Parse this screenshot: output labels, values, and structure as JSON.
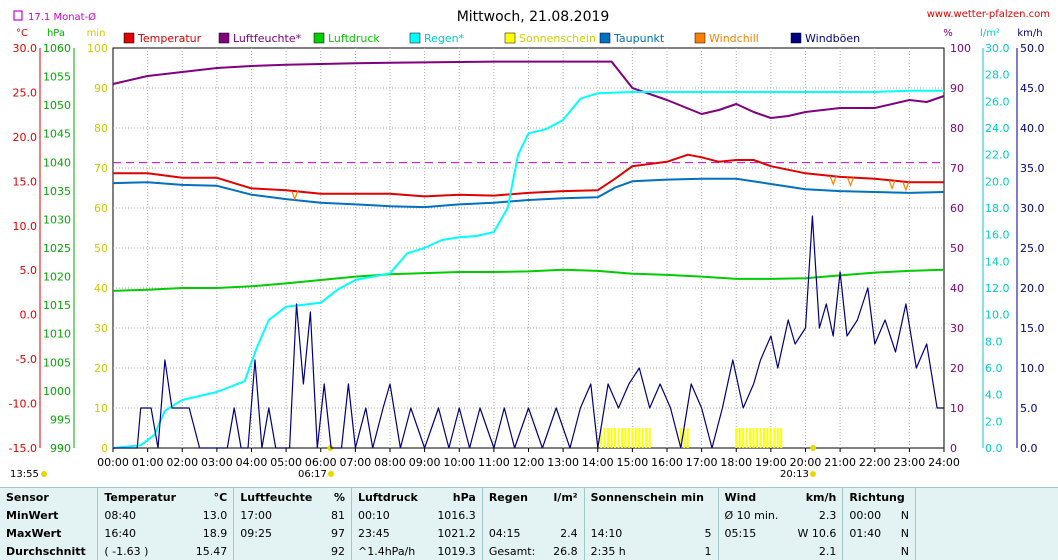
{
  "chart_data": {
    "type": "line",
    "title": "Mittwoch, 21.08.2019",
    "source": "www.wetter-pfalzen.com",
    "monthly_avg_label": "17.1 Monat-Ø",
    "monthly_avg_temp": 17.1,
    "x_ticks": [
      "00:00",
      "01:00",
      "02:00",
      "03:00",
      "04:00",
      "05:00",
      "06:00",
      "07:00",
      "08:00",
      "09:00",
      "10:00",
      "11:00",
      "12:00",
      "13:00",
      "14:00",
      "15:00",
      "16:00",
      "17:00",
      "18:00",
      "19:00",
      "20:00",
      "21:00",
      "22:00",
      "23:00",
      "24:00"
    ],
    "sun_events": {
      "sunrise": "06:17",
      "sunset": "20:13",
      "current_time": "13:55"
    },
    "axes": {
      "temp": {
        "unit": "°C",
        "min": -15,
        "max": 30,
        "ticks": [
          "30.0",
          "25.0",
          "20.0",
          "15.0",
          "10.0",
          "5.0",
          "0.0",
          "-5.0",
          "-10.0",
          "-15.0"
        ]
      },
      "pressure": {
        "unit": "hPa",
        "min": 990,
        "max": 1060,
        "ticks": [
          "1060",
          "1055",
          "1050",
          "1045",
          "1040",
          "1035",
          "1030",
          "1025",
          "1020",
          "1015",
          "1010",
          "1005",
          "1000",
          "995",
          "990"
        ]
      },
      "minutes": {
        "unit": "min",
        "min": 0,
        "max": 100,
        "ticks": [
          "100",
          "90",
          "80",
          "70",
          "60",
          "50",
          "40",
          "30",
          "20",
          "10",
          "0"
        ]
      },
      "humidity": {
        "unit": "%",
        "min": 0,
        "max": 100,
        "ticks": [
          "100",
          "90",
          "80",
          "70",
          "60",
          "50",
          "40",
          "30",
          "20",
          "10",
          "0"
        ]
      },
      "rain": {
        "unit": "l/m²",
        "min": 0,
        "max": 30,
        "ticks": [
          "30.0",
          "28.0",
          "26.0",
          "24.0",
          "22.0",
          "20.0",
          "18.0",
          "16.0",
          "14.0",
          "12.0",
          "10.0",
          "8.0",
          "6.0",
          "4.0",
          "2.0",
          "0.0"
        ]
      },
      "wind": {
        "unit": "km/h",
        "min": 0,
        "max": 50,
        "ticks": [
          "50.0",
          "45.0",
          "40.0",
          "35.0",
          "30.0",
          "25.0",
          "20.0",
          "15.0",
          "10.0",
          "5.0",
          "0.0"
        ]
      }
    },
    "legend": [
      {
        "name": "Temperatur",
        "color": "#e00000"
      },
      {
        "name": "Luftfeuchte*",
        "color": "#800080"
      },
      {
        "name": "Luftdruck",
        "color": "#00cc00"
      },
      {
        "name": "Regen*",
        "color": "#00ffff"
      },
      {
        "name": "Sonnenschein",
        "color": "#ffff00"
      },
      {
        "name": "Taupunkt",
        "color": "#0070c0"
      },
      {
        "name": "Windchill",
        "color": "#ff8000"
      },
      {
        "name": "Windböen",
        "color": "#000080"
      }
    ],
    "series": [
      {
        "key": "temperature",
        "axis": "temp",
        "color": "#e00000",
        "points": [
          [
            0,
            15.9
          ],
          [
            1,
            15.9
          ],
          [
            2,
            15.4
          ],
          [
            3,
            15.4
          ],
          [
            4,
            14.2
          ],
          [
            5,
            14.0
          ],
          [
            6,
            13.6
          ],
          [
            7,
            13.6
          ],
          [
            8,
            13.6
          ],
          [
            9,
            13.3
          ],
          [
            10,
            13.5
          ],
          [
            11,
            13.4
          ],
          [
            12,
            13.7
          ],
          [
            13,
            13.9
          ],
          [
            14,
            14.0
          ],
          [
            14.5,
            15.3
          ],
          [
            15,
            16.7
          ],
          [
            16,
            17.2
          ],
          [
            16.6,
            18.0
          ],
          [
            17,
            17.7
          ],
          [
            17.5,
            17.2
          ],
          [
            18,
            17.4
          ],
          [
            18.5,
            17.4
          ],
          [
            19,
            16.7
          ],
          [
            20,
            15.9
          ],
          [
            21,
            15.5
          ],
          [
            22,
            15.3
          ],
          [
            23,
            14.9
          ],
          [
            24,
            14.9
          ]
        ]
      },
      {
        "key": "dewpoint",
        "axis": "temp",
        "color": "#0070c0",
        "points": [
          [
            0,
            14.8
          ],
          [
            1,
            14.9
          ],
          [
            2,
            14.6
          ],
          [
            3,
            14.5
          ],
          [
            4,
            13.5
          ],
          [
            5,
            13.0
          ],
          [
            6,
            12.6
          ],
          [
            7,
            12.4
          ],
          [
            8,
            12.2
          ],
          [
            9,
            12.1
          ],
          [
            10,
            12.4
          ],
          [
            11,
            12.6
          ],
          [
            12,
            12.9
          ],
          [
            13,
            13.1
          ],
          [
            14,
            13.2
          ],
          [
            14.5,
            14.3
          ],
          [
            15,
            15.0
          ],
          [
            16,
            15.2
          ],
          [
            17,
            15.3
          ],
          [
            18,
            15.3
          ],
          [
            19,
            14.7
          ],
          [
            20,
            14.1
          ],
          [
            21,
            13.9
          ],
          [
            22,
            13.8
          ],
          [
            23,
            13.7
          ],
          [
            24,
            13.8
          ]
        ]
      },
      {
        "key": "humidity",
        "axis": "humidity",
        "color": "#800080",
        "points": [
          [
            0,
            91
          ],
          [
            1,
            93
          ],
          [
            2,
            94
          ],
          [
            3,
            95
          ],
          [
            4,
            95.5
          ],
          [
            5,
            95.8
          ],
          [
            6,
            96
          ],
          [
            7,
            96.2
          ],
          [
            8,
            96.3
          ],
          [
            9,
            96.4
          ],
          [
            10,
            96.5
          ],
          [
            11,
            96.6
          ],
          [
            12,
            96.6
          ],
          [
            13,
            96.6
          ],
          [
            14,
            96.6
          ],
          [
            14.4,
            96.6
          ],
          [
            15,
            90
          ],
          [
            16,
            87
          ],
          [
            17,
            83.5
          ],
          [
            17.5,
            84.5
          ],
          [
            18,
            86
          ],
          [
            18.5,
            84
          ],
          [
            19,
            82.5
          ],
          [
            19.5,
            83
          ],
          [
            20,
            84
          ],
          [
            21,
            85
          ],
          [
            22,
            85
          ],
          [
            23,
            87
          ],
          [
            23.5,
            86.5
          ],
          [
            24,
            88
          ]
        ]
      },
      {
        "key": "pressure",
        "axis": "pressure",
        "color": "#00cc00",
        "points": [
          [
            0,
            1017.5
          ],
          [
            1,
            1017.7
          ],
          [
            2,
            1018
          ],
          [
            3,
            1018
          ],
          [
            4,
            1018.3
          ],
          [
            5,
            1018.8
          ],
          [
            6,
            1019.4
          ],
          [
            7,
            1020
          ],
          [
            8,
            1020.4
          ],
          [
            9,
            1020.6
          ],
          [
            10,
            1020.8
          ],
          [
            11,
            1020.8
          ],
          [
            12,
            1020.9
          ],
          [
            13,
            1021.2
          ],
          [
            14,
            1021
          ],
          [
            15,
            1020.5
          ],
          [
            16,
            1020.3
          ],
          [
            17,
            1020
          ],
          [
            18,
            1019.6
          ],
          [
            19,
            1019.6
          ],
          [
            20,
            1019.7
          ],
          [
            21,
            1020.2
          ],
          [
            22,
            1020.7
          ],
          [
            23,
            1021
          ],
          [
            24,
            1021.2
          ]
        ]
      },
      {
        "key": "rain",
        "axis": "rain",
        "color": "#00ffff",
        "points": [
          [
            0,
            0
          ],
          [
            0.8,
            0.2
          ],
          [
            1.2,
            1.0
          ],
          [
            1.5,
            2.8
          ],
          [
            2,
            3.6
          ],
          [
            3,
            4.2
          ],
          [
            3.8,
            5.0
          ],
          [
            4.15,
            7.5
          ],
          [
            4.5,
            9.6
          ],
          [
            5,
            10.6
          ],
          [
            6,
            10.9
          ],
          [
            6.5,
            11.9
          ],
          [
            7,
            12.6
          ],
          [
            8,
            13.1
          ],
          [
            8.5,
            14.6
          ],
          [
            9,
            15.0
          ],
          [
            9.5,
            15.6
          ],
          [
            10,
            15.8
          ],
          [
            10.5,
            15.9
          ],
          [
            11,
            16.2
          ],
          [
            11.4,
            18.0
          ],
          [
            11.7,
            22.0
          ],
          [
            12,
            23.6
          ],
          [
            12.5,
            23.9
          ],
          [
            13,
            24.6
          ],
          [
            13.5,
            26.2
          ],
          [
            14,
            26.6
          ],
          [
            15,
            26.7
          ],
          [
            16,
            26.7
          ],
          [
            17,
            26.7
          ],
          [
            18,
            26.7
          ],
          [
            20,
            26.7
          ],
          [
            22,
            26.7
          ],
          [
            23,
            26.8
          ],
          [
            24,
            26.8
          ]
        ]
      },
      {
        "key": "gusts",
        "axis": "wind",
        "color": "#000080",
        "points": [
          [
            0,
            0
          ],
          [
            0.7,
            0
          ],
          [
            0.8,
            5
          ],
          [
            1.1,
            5
          ],
          [
            1.3,
            0
          ],
          [
            1.5,
            11
          ],
          [
            1.7,
            5
          ],
          [
            2,
            5
          ],
          [
            2.2,
            5
          ],
          [
            2.5,
            0
          ],
          [
            3,
            0
          ],
          [
            3.3,
            0
          ],
          [
            3.5,
            5
          ],
          [
            3.7,
            0
          ],
          [
            3.9,
            0
          ],
          [
            4.1,
            11
          ],
          [
            4.3,
            0
          ],
          [
            4.5,
            5
          ],
          [
            4.7,
            0
          ],
          [
            4.9,
            0
          ],
          [
            5.1,
            0
          ],
          [
            5.3,
            18
          ],
          [
            5.5,
            8
          ],
          [
            5.7,
            17
          ],
          [
            5.9,
            0
          ],
          [
            6.1,
            8
          ],
          [
            6.3,
            0
          ],
          [
            6.6,
            0
          ],
          [
            6.8,
            8
          ],
          [
            7,
            0
          ],
          [
            7.3,
            5
          ],
          [
            7.5,
            0
          ],
          [
            7.8,
            5
          ],
          [
            8,
            8
          ],
          [
            8.3,
            0
          ],
          [
            8.6,
            5
          ],
          [
            9,
            0
          ],
          [
            9.4,
            5
          ],
          [
            9.7,
            0
          ],
          [
            10,
            5
          ],
          [
            10.3,
            0
          ],
          [
            10.6,
            5
          ],
          [
            11,
            0
          ],
          [
            11.3,
            5
          ],
          [
            11.6,
            0
          ],
          [
            12,
            5
          ],
          [
            12.4,
            0
          ],
          [
            12.8,
            5
          ],
          [
            13.2,
            0
          ],
          [
            13.5,
            5
          ],
          [
            13.8,
            8
          ],
          [
            14,
            0
          ],
          [
            14.3,
            8
          ],
          [
            14.6,
            5
          ],
          [
            14.9,
            8
          ],
          [
            15.2,
            10
          ],
          [
            15.5,
            5
          ],
          [
            15.8,
            8
          ],
          [
            16.1,
            5
          ],
          [
            16.4,
            0
          ],
          [
            16.7,
            8
          ],
          [
            17,
            5
          ],
          [
            17.3,
            0
          ],
          [
            17.6,
            5
          ],
          [
            17.9,
            11
          ],
          [
            18.2,
            5
          ],
          [
            18.5,
            8
          ],
          [
            18.7,
            11
          ],
          [
            19,
            14
          ],
          [
            19.2,
            10
          ],
          [
            19.5,
            16
          ],
          [
            19.7,
            13
          ],
          [
            20,
            15
          ],
          [
            20.2,
            29
          ],
          [
            20.4,
            15
          ],
          [
            20.6,
            18
          ],
          [
            20.8,
            14
          ],
          [
            21,
            22
          ],
          [
            21.2,
            14
          ],
          [
            21.5,
            16
          ],
          [
            21.8,
            20
          ],
          [
            22,
            13
          ],
          [
            22.3,
            16
          ],
          [
            22.6,
            12
          ],
          [
            22.9,
            18
          ],
          [
            23.2,
            10
          ],
          [
            23.5,
            13
          ],
          [
            23.8,
            5
          ],
          [
            24,
            5
          ]
        ]
      }
    ],
    "windchill_marks": [
      5.25,
      20.8,
      21.3,
      22.5,
      22.9
    ],
    "sunshine_blocks": [
      [
        14.1,
        15.5
      ],
      [
        16.4,
        16.6
      ],
      [
        18.0,
        19.3
      ]
    ]
  },
  "stats": {
    "headers": {
      "sensor": "Sensor",
      "temp": "Temperatur",
      "temp_unit": "°C",
      "hum": "Luftfeuchte",
      "hum_unit": "%",
      "press": "Luftdruck",
      "press_unit": "hPa",
      "rain": "Regen",
      "rain_unit": "l/m²",
      "sun": "Sonnenschein min",
      "wind": "Wind",
      "wind_unit": "km/h",
      "dir": "Richtung"
    },
    "rows": [
      {
        "label": "MinWert",
        "temp_t": "08:40",
        "temp_v": "13.0",
        "hum_t": "17:00",
        "hum_v": "81",
        "press_t": "00:10",
        "press_v": "1016.3",
        "rain_t": "",
        "rain_v": "",
        "sun_t": "",
        "sun_v": "",
        "wind_t": "Ø 10 min.",
        "wind_v": "2.3",
        "dir_t": "00:00",
        "dir_v": "N"
      },
      {
        "label": "MaxWert",
        "temp_t": "16:40",
        "temp_v": "18.9",
        "hum_t": "09:25",
        "hum_v": "97",
        "press_t": "23:45",
        "press_v": "1021.2",
        "rain_t": "04:15",
        "rain_v": "2.4",
        "sun_t": "14:10",
        "sun_v": "5",
        "wind_t": "05:15",
        "wind_v": "W 10.6",
        "dir_t": "01:40",
        "dir_v": "N"
      },
      {
        "label": "Durchschnitt",
        "temp_t": "( -1.63 )",
        "temp_v": "15.47",
        "hum_t": "",
        "hum_v": "92",
        "press_t": "^1.4hPa/h",
        "press_v": "1019.3",
        "rain_t": "Gesamt:",
        "rain_v": "26.8",
        "sun_t": "2:35 h",
        "sun_v": "1",
        "wind_t": "",
        "wind_v": "2.1",
        "dir_t": "",
        "dir_v": "N"
      }
    ]
  }
}
